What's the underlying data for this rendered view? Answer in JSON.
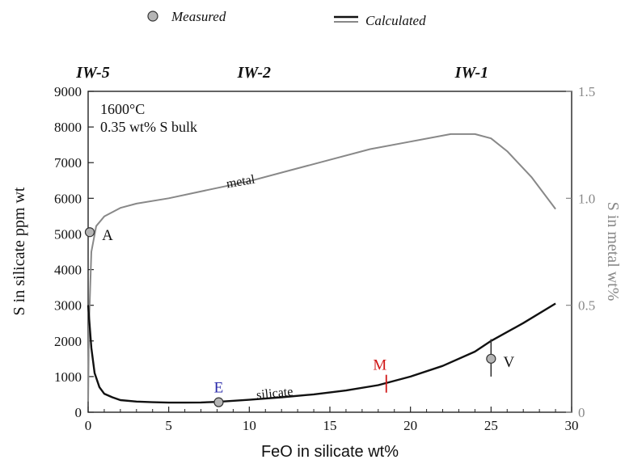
{
  "legend": {
    "measured_label": "Measured",
    "calculated_label": "Calculated",
    "position": "top-center"
  },
  "chart_data": {
    "type": "line",
    "xlabel": "FeO in silicate wt%",
    "ylabel_left": "S in silicate ppm wt",
    "ylabel_right": "S in metal wt%",
    "xlim": [
      0,
      30
    ],
    "ylim_left": [
      0,
      9000
    ],
    "ylim_right": [
      0,
      1.5
    ],
    "x_ticks": [
      "0",
      "5",
      "10",
      "15",
      "20",
      "25",
      "30"
    ],
    "y_left_ticks": [
      "0",
      "1000",
      "2000",
      "3000",
      "4000",
      "5000",
      "6000",
      "7000",
      "8000",
      "9000"
    ],
    "y_right_ticks": [
      "0",
      "0.5",
      "1.0",
      "1.5"
    ],
    "grid": false,
    "top_labels": [
      {
        "x": 0.3,
        "text": "IW-5"
      },
      {
        "x": 10.3,
        "text": "IW-2"
      },
      {
        "x": 23.8,
        "text": "IW-1"
      }
    ],
    "annotation_lines": [
      "1600°C",
      "0.35 wt% S bulk"
    ],
    "series": [
      {
        "name": "metal",
        "axis": "right",
        "color": "#888888",
        "points": [
          [
            0.0,
            0.05
          ],
          [
            0.05,
            0.4
          ],
          [
            0.2,
            0.75
          ],
          [
            0.5,
            0.87
          ],
          [
            1.0,
            0.915
          ],
          [
            2.0,
            0.955
          ],
          [
            3.0,
            0.975
          ],
          [
            5.0,
            1.0
          ],
          [
            7.5,
            1.04
          ],
          [
            10.0,
            1.08
          ],
          [
            12.5,
            1.13
          ],
          [
            15.0,
            1.18
          ],
          [
            17.5,
            1.23
          ],
          [
            20.0,
            1.265
          ],
          [
            22.5,
            1.3
          ],
          [
            24.0,
            1.3
          ],
          [
            25.0,
            1.28
          ],
          [
            26.0,
            1.22
          ],
          [
            27.5,
            1.1
          ],
          [
            29.0,
            0.95
          ]
        ]
      },
      {
        "name": "silicate",
        "axis": "left",
        "color": "#111111",
        "points": [
          [
            0.0,
            3000
          ],
          [
            0.2,
            1800
          ],
          [
            0.4,
            1100
          ],
          [
            0.7,
            700
          ],
          [
            1.0,
            520
          ],
          [
            1.5,
            420
          ],
          [
            2.0,
            340
          ],
          [
            3.0,
            300
          ],
          [
            4.0,
            280
          ],
          [
            5.0,
            270
          ],
          [
            6.0,
            270
          ],
          [
            7.0,
            275
          ],
          [
            8.0,
            290
          ],
          [
            10.0,
            350
          ],
          [
            12.0,
            420
          ],
          [
            14.0,
            500
          ],
          [
            16.0,
            610
          ],
          [
            18.0,
            760
          ],
          [
            20.0,
            1000
          ],
          [
            22.0,
            1300
          ],
          [
            24.0,
            1700
          ],
          [
            25.0,
            2000
          ],
          [
            27.0,
            2500
          ],
          [
            29.0,
            3050
          ]
        ]
      }
    ],
    "measured_points": [
      {
        "label": "A",
        "x": 0.1,
        "y": 5050,
        "label_color": "#111111"
      },
      {
        "label": "E",
        "x": 8.1,
        "y": 280,
        "label_color": "#2a2aaa"
      },
      {
        "label": "V",
        "x": 25.0,
        "y": 1500,
        "err_low": 1000,
        "err_high": 2050,
        "label_color": "#111111"
      }
    ],
    "markers": [
      {
        "label": "M",
        "x": 18.5,
        "y": 760,
        "err_low": 550,
        "err_high": 1050,
        "color": "#d01818"
      }
    ],
    "curve_labels": [
      {
        "text": "metal",
        "series": "metal",
        "x": 9.5,
        "y": 1.06,
        "angle": -10
      },
      {
        "text": "silicate",
        "series": "silicate",
        "x": 11.6,
        "y": 420,
        "angle": -6
      }
    ]
  }
}
